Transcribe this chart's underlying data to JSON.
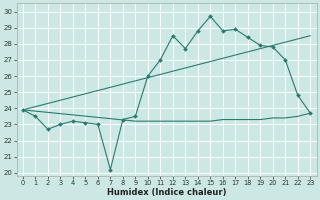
{
  "xlabel": "Humidex (Indice chaleur)",
  "bg_color": "#cce8e4",
  "grid_color": "#ffffff",
  "line_color": "#2a7a70",
  "xlim": [
    -0.5,
    23.5
  ],
  "ylim": [
    19.8,
    30.5
  ],
  "xticks": [
    0,
    1,
    2,
    3,
    4,
    5,
    6,
    7,
    8,
    9,
    10,
    11,
    12,
    13,
    14,
    15,
    16,
    17,
    18,
    19,
    20,
    21,
    22,
    23
  ],
  "yticks": [
    20,
    21,
    22,
    23,
    24,
    25,
    26,
    27,
    28,
    29,
    30
  ],
  "series1_x": [
    0,
    1,
    2,
    3,
    4,
    5,
    6,
    7,
    8,
    9,
    10,
    11,
    12,
    13,
    14,
    15,
    16,
    17,
    18,
    19,
    20,
    21,
    22,
    23
  ],
  "series1_y": [
    23.9,
    23.5,
    22.7,
    23.0,
    23.2,
    23.1,
    23.0,
    20.2,
    23.3,
    23.5,
    26.0,
    27.0,
    28.5,
    27.7,
    28.8,
    29.7,
    28.8,
    28.9,
    28.4,
    27.9,
    27.8,
    27.0,
    24.8,
    23.7
  ],
  "series2_x": [
    0,
    9,
    10,
    11,
    12,
    13,
    14,
    15,
    16,
    17,
    18,
    19,
    20,
    21,
    22,
    23
  ],
  "series2_y": [
    23.9,
    23.2,
    23.2,
    23.2,
    23.2,
    23.2,
    23.2,
    23.2,
    23.3,
    23.3,
    23.3,
    23.3,
    23.4,
    23.4,
    23.5,
    23.7
  ],
  "series3_x": [
    0,
    23
  ],
  "series3_y": [
    23.9,
    28.5
  ]
}
